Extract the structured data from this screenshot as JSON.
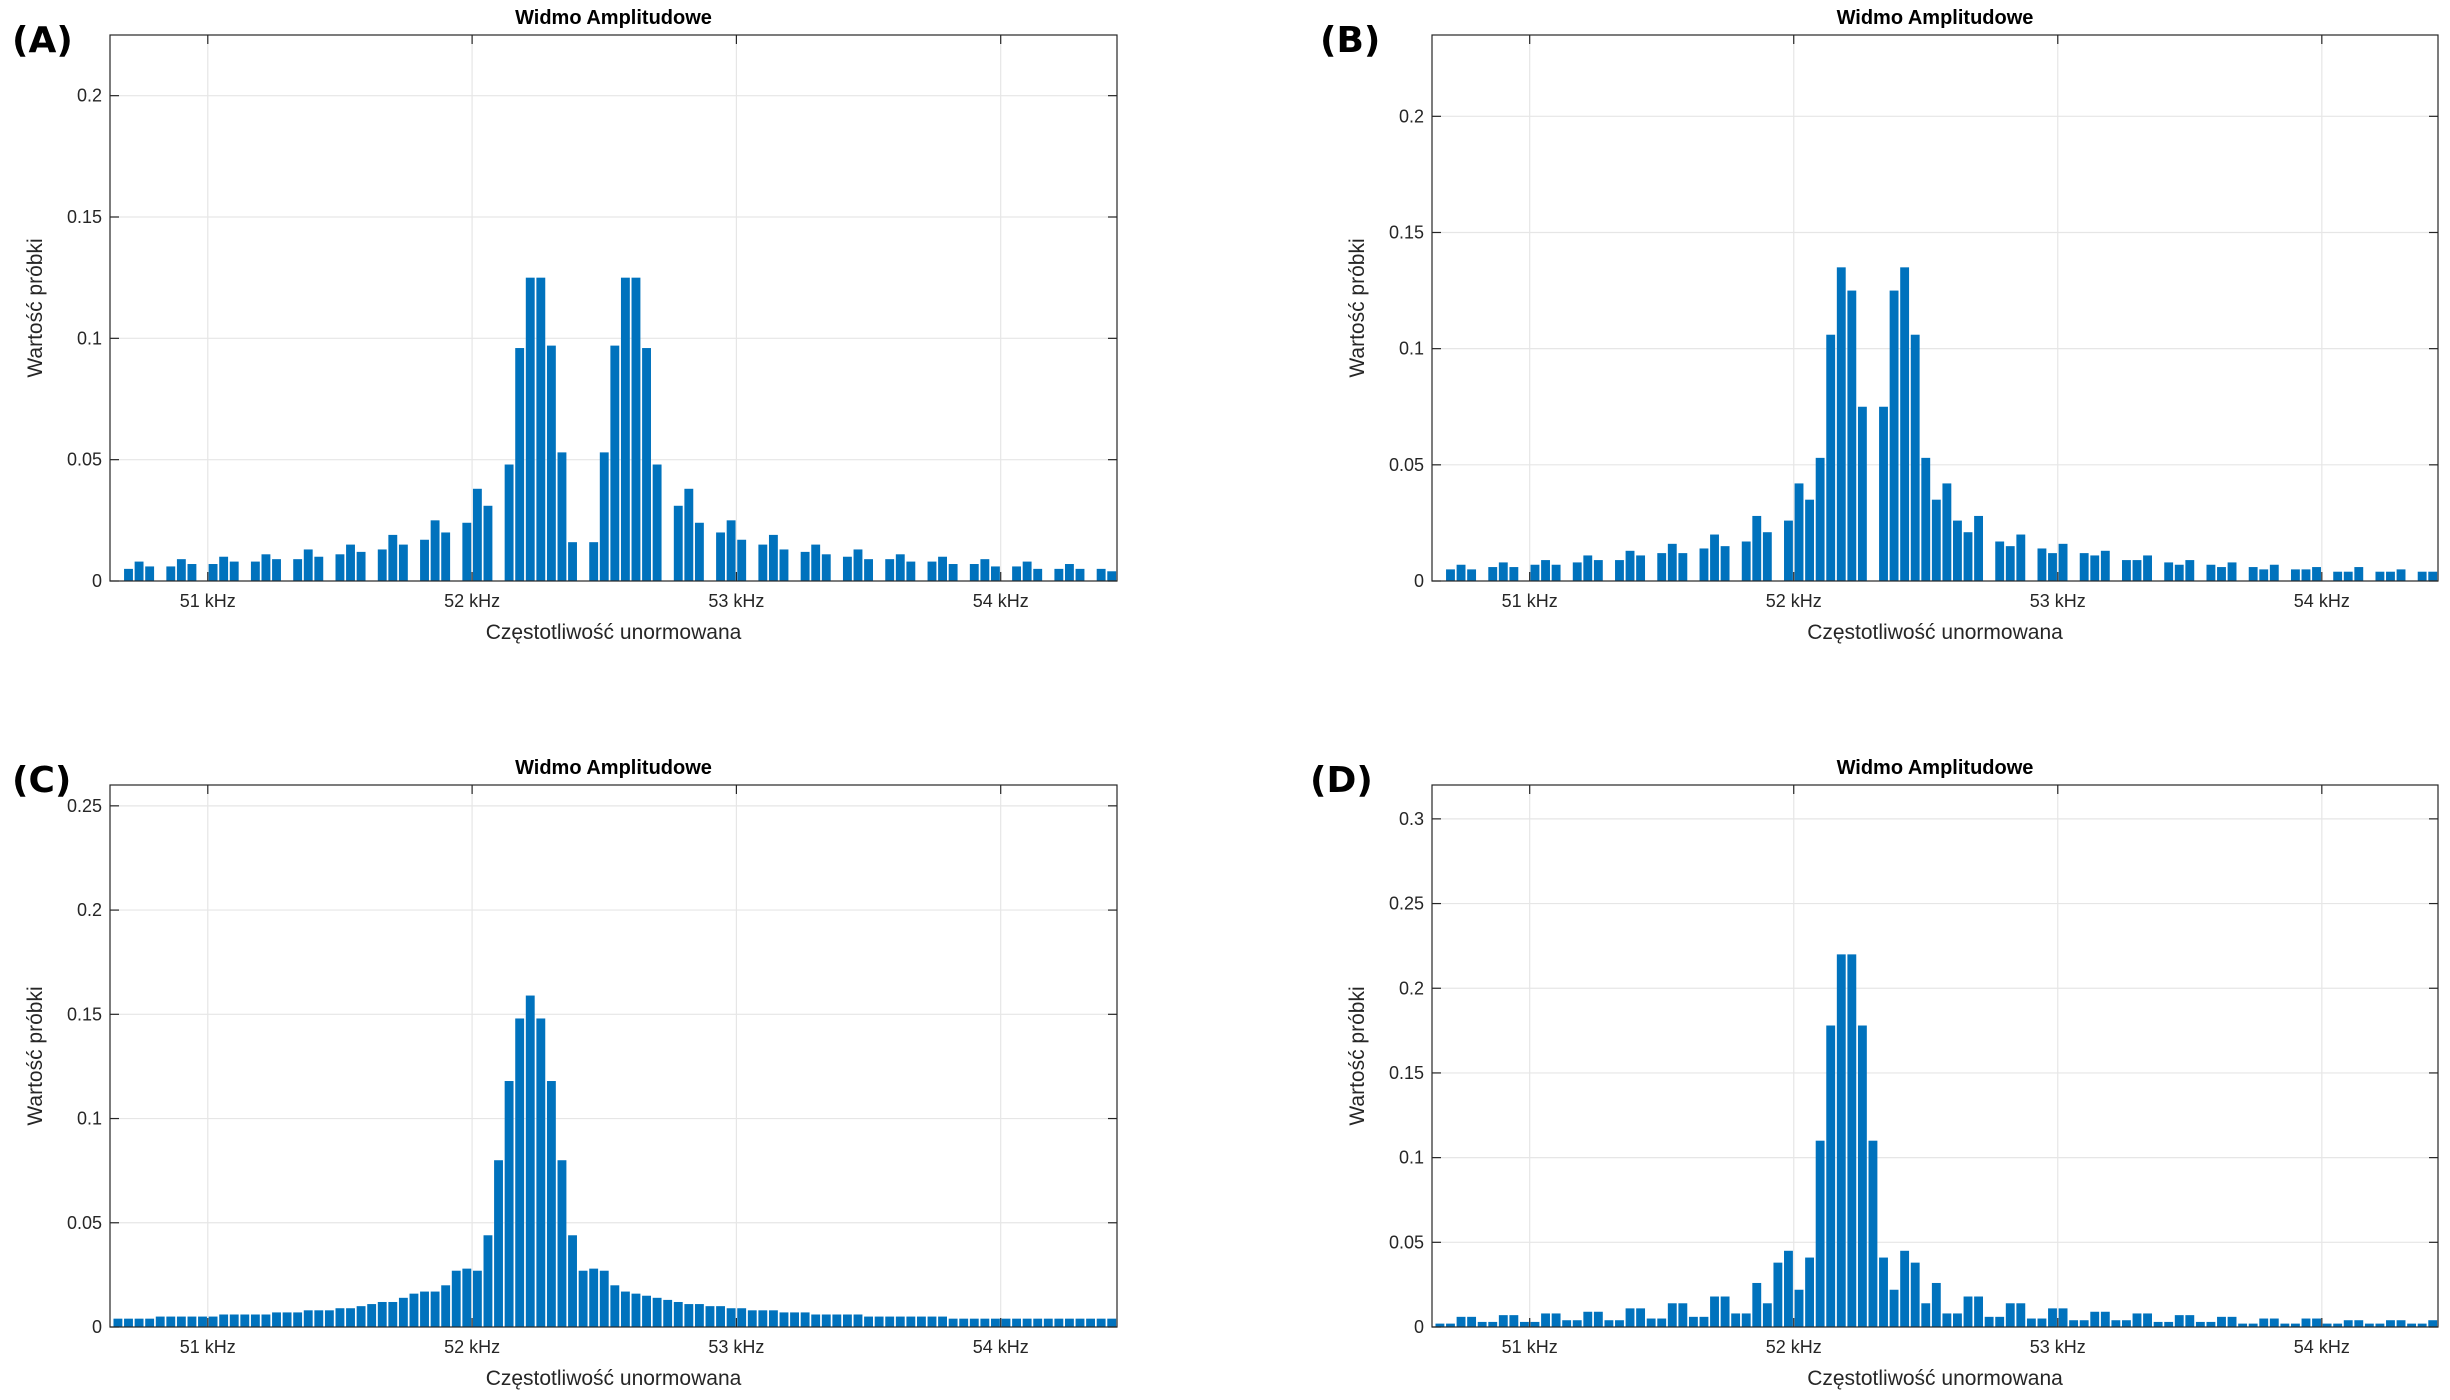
{
  "chart_data": [
    {
      "panel": "(A)",
      "type": "bar",
      "title": "Widmo Amplitudowe",
      "xlabel": "Częstotliwość unormowana",
      "ylabel": "Wartość próbki",
      "xticks": [
        {
          "value": 51,
          "label": "51 kHz"
        },
        {
          "value": 52,
          "label": "52 kHz"
        },
        {
          "value": 53,
          "label": "53 kHz"
        },
        {
          "value": 54,
          "label": "54 kHz"
        }
      ],
      "yticks": [
        {
          "value": 0,
          "label": "0"
        },
        {
          "value": 0.05,
          "label": "0.05"
        },
        {
          "value": 0.1,
          "label": "0.1"
        },
        {
          "value": 0.15,
          "label": "0.15"
        },
        {
          "value": 0.2,
          "label": "0.2"
        }
      ],
      "xlim": [
        50.63,
        54.44
      ],
      "ylim": [
        0,
        0.225
      ],
      "grid": true,
      "color": "#0072BD",
      "x": [
        50.7,
        50.74,
        50.78,
        50.86,
        50.9,
        50.94,
        51.02,
        51.06,
        51.1,
        51.18,
        51.22,
        51.26,
        51.34,
        51.38,
        51.42,
        51.5,
        51.54,
        51.58,
        51.66,
        51.7,
        51.74,
        51.82,
        51.86,
        51.9,
        51.98,
        52.02,
        52.06,
        52.14,
        52.18,
        52.22,
        52.26,
        52.3,
        52.34,
        52.38,
        52.46,
        52.5,
        52.54,
        52.58,
        52.62,
        52.66,
        52.7,
        52.78,
        52.82,
        52.86,
        52.94,
        52.98,
        53.02,
        53.1,
        53.14,
        53.18,
        53.26,
        53.3,
        53.34,
        53.42,
        53.46,
        53.5,
        53.58,
        53.62,
        53.66,
        53.74,
        53.78,
        53.82,
        53.9,
        53.94,
        53.98,
        54.06,
        54.1,
        54.14,
        54.22,
        54.26,
        54.3,
        54.38,
        54.42
      ],
      "values": [
        0.005,
        0.008,
        0.006,
        0.006,
        0.009,
        0.007,
        0.007,
        0.01,
        0.008,
        0.008,
        0.011,
        0.009,
        0.009,
        0.013,
        0.01,
        0.011,
        0.015,
        0.012,
        0.013,
        0.019,
        0.015,
        0.017,
        0.025,
        0.02,
        0.024,
        0.038,
        0.031,
        0.048,
        0.096,
        0.125,
        0.125,
        0.097,
        0.053,
        0.016,
        0.016,
        0.053,
        0.097,
        0.125,
        0.125,
        0.096,
        0.048,
        0.031,
        0.038,
        0.024,
        0.02,
        0.025,
        0.017,
        0.015,
        0.019,
        0.013,
        0.012,
        0.015,
        0.011,
        0.01,
        0.013,
        0.009,
        0.009,
        0.011,
        0.008,
        0.008,
        0.01,
        0.007,
        0.007,
        0.009,
        0.006,
        0.006,
        0.008,
        0.005,
        0.005,
        0.007,
        0.005,
        0.005,
        0.004
      ]
    },
    {
      "panel": "(B)",
      "type": "bar",
      "title": "Widmo Amplitudowe",
      "xlabel": "Częstotliwość unormowana",
      "ylabel": "Wartość próbki",
      "xticks": [
        {
          "value": 51,
          "label": "51 kHz"
        },
        {
          "value": 52,
          "label": "52 kHz"
        },
        {
          "value": 53,
          "label": "53 kHz"
        },
        {
          "value": 54,
          "label": "54 kHz"
        }
      ],
      "yticks": [
        {
          "value": 0,
          "label": "0"
        },
        {
          "value": 0.05,
          "label": "0.05"
        },
        {
          "value": 0.1,
          "label": "0.1"
        },
        {
          "value": 0.15,
          "label": "0.15"
        },
        {
          "value": 0.2,
          "label": "0.2"
        }
      ],
      "xlim": [
        50.63,
        54.44
      ],
      "ylim": [
        0,
        0.235
      ],
      "grid": true,
      "color": "#0072BD",
      "x": [
        50.7,
        50.74,
        50.78,
        50.86,
        50.9,
        50.94,
        51.02,
        51.06,
        51.1,
        51.18,
        51.22,
        51.26,
        51.34,
        51.38,
        51.42,
        51.5,
        51.54,
        51.58,
        51.66,
        51.7,
        51.74,
        51.82,
        51.86,
        51.9,
        51.98,
        52.02,
        52.06,
        52.1,
        52.14,
        52.18,
        52.22,
        52.26,
        52.34,
        52.38,
        52.42,
        52.46,
        52.5,
        52.54,
        52.58,
        52.62,
        52.66,
        52.7,
        52.78,
        52.82,
        52.86,
        52.94,
        52.98,
        53.02,
        53.1,
        53.14,
        53.18,
        53.26,
        53.3,
        53.34,
        53.42,
        53.46,
        53.5,
        53.58,
        53.62,
        53.66,
        53.74,
        53.78,
        53.82,
        53.9,
        53.94,
        53.98,
        54.06,
        54.1,
        54.14,
        54.22,
        54.26,
        54.3,
        54.38,
        54.42
      ],
      "values": [
        0.005,
        0.007,
        0.005,
        0.006,
        0.008,
        0.006,
        0.007,
        0.009,
        0.007,
        0.008,
        0.011,
        0.009,
        0.009,
        0.013,
        0.011,
        0.012,
        0.016,
        0.012,
        0.014,
        0.02,
        0.015,
        0.017,
        0.028,
        0.021,
        0.026,
        0.042,
        0.035,
        0.053,
        0.106,
        0.135,
        0.125,
        0.075,
        0.075,
        0.125,
        0.135,
        0.106,
        0.053,
        0.035,
        0.042,
        0.026,
        0.021,
        0.028,
        0.017,
        0.015,
        0.02,
        0.014,
        0.012,
        0.016,
        0.012,
        0.011,
        0.013,
        0.009,
        0.009,
        0.011,
        0.008,
        0.007,
        0.009,
        0.007,
        0.006,
        0.008,
        0.006,
        0.005,
        0.007,
        0.005,
        0.005,
        0.006,
        0.004,
        0.004,
        0.006,
        0.004,
        0.004,
        0.005,
        0.004,
        0.004
      ]
    },
    {
      "panel": "(C)",
      "type": "bar",
      "title": "Widmo Amplitudowe",
      "xlabel": "Częstotliwość unormowana",
      "ylabel": "Wartość próbki",
      "xticks": [
        {
          "value": 51,
          "label": "51 kHz"
        },
        {
          "value": 52,
          "label": "52 kHz"
        },
        {
          "value": 53,
          "label": "53 kHz"
        },
        {
          "value": 54,
          "label": "54 kHz"
        }
      ],
      "yticks": [
        {
          "value": 0,
          "label": "0"
        },
        {
          "value": 0.05,
          "label": "0.05"
        },
        {
          "value": 0.1,
          "label": "0.1"
        },
        {
          "value": 0.15,
          "label": "0.15"
        },
        {
          "value": 0.2,
          "label": "0.2"
        },
        {
          "value": 0.25,
          "label": "0.25"
        }
      ],
      "xlim": [
        50.63,
        54.44
      ],
      "ylim": [
        0,
        0.26
      ],
      "grid": true,
      "color": "#0072BD",
      "x": [
        50.66,
        50.7,
        50.74,
        50.78,
        50.82,
        50.86,
        50.9,
        50.94,
        50.98,
        51.02,
        51.06,
        51.1,
        51.14,
        51.18,
        51.22,
        51.26,
        51.3,
        51.34,
        51.38,
        51.42,
        51.46,
        51.5,
        51.54,
        51.58,
        51.62,
        51.66,
        51.7,
        51.74,
        51.78,
        51.82,
        51.86,
        51.9,
        51.94,
        51.98,
        52.02,
        52.06,
        52.1,
        52.14,
        52.18,
        52.22,
        52.26,
        52.3,
        52.34,
        52.38,
        52.42,
        52.46,
        52.5,
        52.54,
        52.58,
        52.62,
        52.66,
        52.7,
        52.74,
        52.78,
        52.82,
        52.86,
        52.9,
        52.94,
        52.98,
        53.02,
        53.06,
        53.1,
        53.14,
        53.18,
        53.22,
        53.26,
        53.3,
        53.34,
        53.38,
        53.42,
        53.46,
        53.5,
        53.54,
        53.58,
        53.62,
        53.66,
        53.7,
        53.74,
        53.78,
        53.82,
        53.86,
        53.9,
        53.94,
        53.98,
        54.02,
        54.06,
        54.1,
        54.14,
        54.18,
        54.22,
        54.26,
        54.3,
        54.34,
        54.38,
        54.42
      ],
      "values": [
        0.004,
        0.004,
        0.004,
        0.004,
        0.005,
        0.005,
        0.005,
        0.005,
        0.005,
        0.005,
        0.006,
        0.006,
        0.006,
        0.006,
        0.006,
        0.007,
        0.007,
        0.007,
        0.008,
        0.008,
        0.008,
        0.009,
        0.009,
        0.01,
        0.011,
        0.012,
        0.012,
        0.014,
        0.016,
        0.017,
        0.017,
        0.02,
        0.027,
        0.028,
        0.027,
        0.044,
        0.08,
        0.118,
        0.148,
        0.159,
        0.148,
        0.118,
        0.08,
        0.044,
        0.027,
        0.028,
        0.027,
        0.02,
        0.017,
        0.016,
        0.015,
        0.014,
        0.013,
        0.012,
        0.011,
        0.011,
        0.01,
        0.01,
        0.009,
        0.009,
        0.008,
        0.008,
        0.008,
        0.007,
        0.007,
        0.007,
        0.006,
        0.006,
        0.006,
        0.006,
        0.006,
        0.005,
        0.005,
        0.005,
        0.005,
        0.005,
        0.005,
        0.005,
        0.005,
        0.004,
        0.004,
        0.004,
        0.004,
        0.004,
        0.004,
        0.004,
        0.004,
        0.004,
        0.004,
        0.004,
        0.004,
        0.004,
        0.004,
        0.004,
        0.004
      ]
    },
    {
      "panel": "(D)",
      "type": "bar",
      "title": "Widmo Amplitudowe",
      "xlabel": "Częstotliwość unormowana",
      "ylabel": "Wartość próbki",
      "xticks": [
        {
          "value": 51,
          "label": "51 kHz"
        },
        {
          "value": 52,
          "label": "52 kHz"
        },
        {
          "value": 53,
          "label": "53 kHz"
        },
        {
          "value": 54,
          "label": "54 kHz"
        }
      ],
      "yticks": [
        {
          "value": 0,
          "label": "0"
        },
        {
          "value": 0.05,
          "label": "0.05"
        },
        {
          "value": 0.1,
          "label": "0.1"
        },
        {
          "value": 0.15,
          "label": "0.15"
        },
        {
          "value": 0.2,
          "label": "0.2"
        },
        {
          "value": 0.25,
          "label": "0.25"
        },
        {
          "value": 0.3,
          "label": "0.3"
        }
      ],
      "xlim": [
        50.63,
        54.44
      ],
      "ylim": [
        0,
        0.32
      ],
      "grid": true,
      "color": "#0072BD",
      "x": [
        50.66,
        50.7,
        50.74,
        50.78,
        50.82,
        50.86,
        50.9,
        50.94,
        50.98,
        51.02,
        51.06,
        51.1,
        51.14,
        51.18,
        51.22,
        51.26,
        51.3,
        51.34,
        51.38,
        51.42,
        51.46,
        51.5,
        51.54,
        51.58,
        51.62,
        51.66,
        51.7,
        51.74,
        51.78,
        51.82,
        51.86,
        51.9,
        51.94,
        51.98,
        52.02,
        52.06,
        52.1,
        52.14,
        52.18,
        52.22,
        52.26,
        52.3,
        52.34,
        52.38,
        52.42,
        52.46,
        52.5,
        52.54,
        52.58,
        52.62,
        52.66,
        52.7,
        52.74,
        52.78,
        52.82,
        52.86,
        52.9,
        52.94,
        52.98,
        53.02,
        53.06,
        53.1,
        53.14,
        53.18,
        53.22,
        53.26,
        53.3,
        53.34,
        53.38,
        53.42,
        53.46,
        53.5,
        53.54,
        53.58,
        53.62,
        53.66,
        53.7,
        53.74,
        53.78,
        53.82,
        53.86,
        53.9,
        53.94,
        53.98,
        54.02,
        54.06,
        54.1,
        54.14,
        54.18,
        54.22,
        54.26,
        54.3,
        54.34,
        54.38,
        54.42
      ],
      "values": [
        0.002,
        0.002,
        0.006,
        0.006,
        0.003,
        0.003,
        0.007,
        0.007,
        0.003,
        0.003,
        0.008,
        0.008,
        0.004,
        0.004,
        0.009,
        0.009,
        0.004,
        0.004,
        0.011,
        0.011,
        0.005,
        0.005,
        0.014,
        0.014,
        0.006,
        0.006,
        0.018,
        0.018,
        0.008,
        0.008,
        0.026,
        0.014,
        0.038,
        0.045,
        0.022,
        0.041,
        0.11,
        0.178,
        0.22,
        0.22,
        0.178,
        0.11,
        0.041,
        0.022,
        0.045,
        0.038,
        0.014,
        0.026,
        0.008,
        0.008,
        0.018,
        0.018,
        0.006,
        0.006,
        0.014,
        0.014,
        0.005,
        0.005,
        0.011,
        0.011,
        0.004,
        0.004,
        0.009,
        0.009,
        0.004,
        0.004,
        0.008,
        0.008,
        0.003,
        0.003,
        0.007,
        0.007,
        0.003,
        0.003,
        0.006,
        0.006,
        0.002,
        0.002,
        0.005,
        0.005,
        0.002,
        0.002,
        0.005,
        0.005,
        0.002,
        0.002,
        0.004,
        0.004,
        0.002,
        0.002,
        0.004,
        0.004,
        0.002,
        0.002,
        0.004
      ]
    }
  ]
}
